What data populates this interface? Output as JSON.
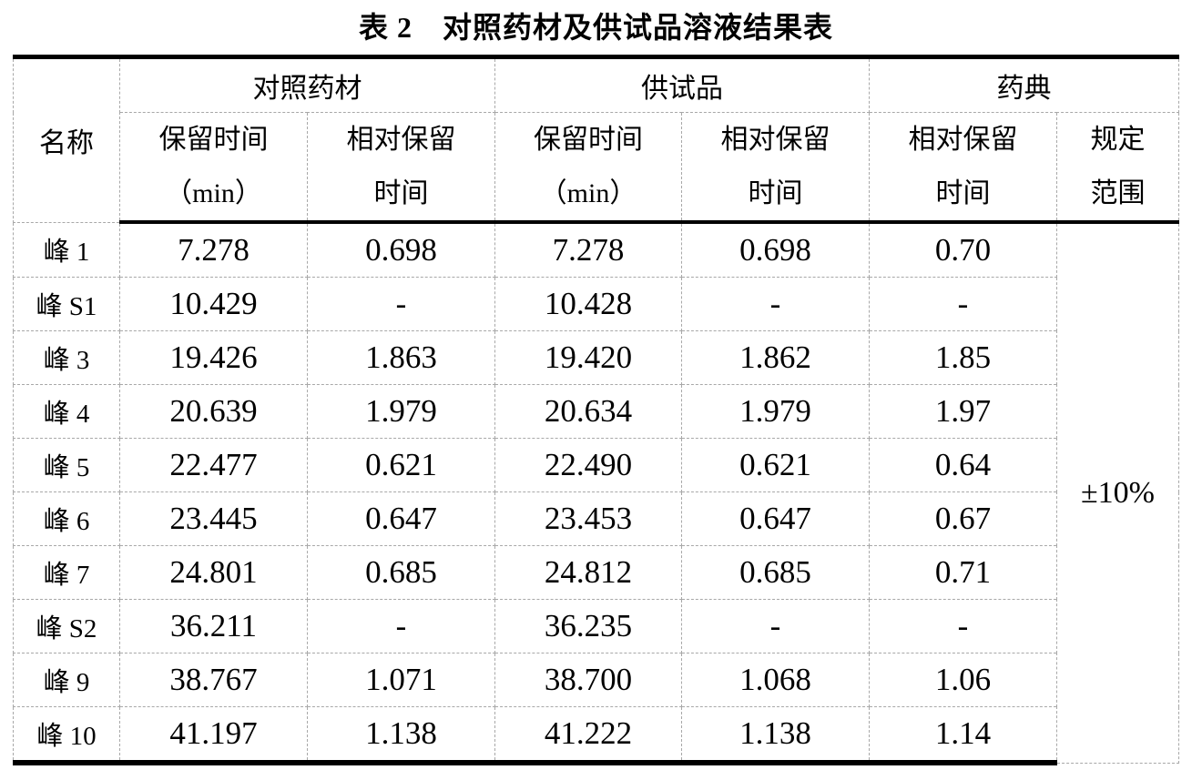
{
  "title": "表 2　对照药材及供试品溶液结果表",
  "table": {
    "name_header": "名称",
    "groups": [
      {
        "label": "对照药材"
      },
      {
        "label": "供试品"
      },
      {
        "label": "药典"
      }
    ],
    "sub_headers": [
      {
        "line1": "保留时间",
        "line2": "（min）"
      },
      {
        "line1": "相对保留",
        "line2": "时间"
      },
      {
        "line1": "保留时间",
        "line2": "（min）"
      },
      {
        "line1": "相对保留",
        "line2": "时间"
      },
      {
        "line1": "相对保留",
        "line2": "时间"
      },
      {
        "line1": "规定",
        "line2": "范围"
      }
    ],
    "range_value": "±10%",
    "rows": [
      {
        "name": "峰 1",
        "ref_rt": "7.278",
        "ref_rrt": "0.698",
        "test_rt": "7.278",
        "test_rrt": "0.698",
        "pharm_rrt": "0.70"
      },
      {
        "name": "峰 S1",
        "ref_rt": "10.429",
        "ref_rrt": "-",
        "test_rt": "10.428",
        "test_rrt": "-",
        "pharm_rrt": "-"
      },
      {
        "name": "峰 3",
        "ref_rt": "19.426",
        "ref_rrt": "1.863",
        "test_rt": "19.420",
        "test_rrt": "1.862",
        "pharm_rrt": "1.85"
      },
      {
        "name": "峰 4",
        "ref_rt": "20.639",
        "ref_rrt": "1.979",
        "test_rt": "20.634",
        "test_rrt": "1.979",
        "pharm_rrt": "1.97"
      },
      {
        "name": "峰 5",
        "ref_rt": "22.477",
        "ref_rrt": "0.621",
        "test_rt": "22.490",
        "test_rrt": "0.621",
        "pharm_rrt": "0.64"
      },
      {
        "name": "峰 6",
        "ref_rt": "23.445",
        "ref_rrt": "0.647",
        "test_rt": "23.453",
        "test_rrt": "0.647",
        "pharm_rrt": "0.67"
      },
      {
        "name": "峰 7",
        "ref_rt": "24.801",
        "ref_rrt": "0.685",
        "test_rt": "24.812",
        "test_rrt": "0.685",
        "pharm_rrt": "0.71"
      },
      {
        "name": "峰 S2",
        "ref_rt": "36.211",
        "ref_rrt": "-",
        "test_rt": "36.235",
        "test_rrt": "-",
        "pharm_rrt": "-"
      },
      {
        "name": "峰 9",
        "ref_rt": "38.767",
        "ref_rrt": "1.071",
        "test_rt": "38.700",
        "test_rrt": "1.068",
        "pharm_rrt": "1.06"
      },
      {
        "name": "峰 10",
        "ref_rt": "41.197",
        "ref_rrt": "1.138",
        "test_rt": "41.222",
        "test_rrt": "1.138",
        "pharm_rrt": "1.14"
      }
    ]
  }
}
